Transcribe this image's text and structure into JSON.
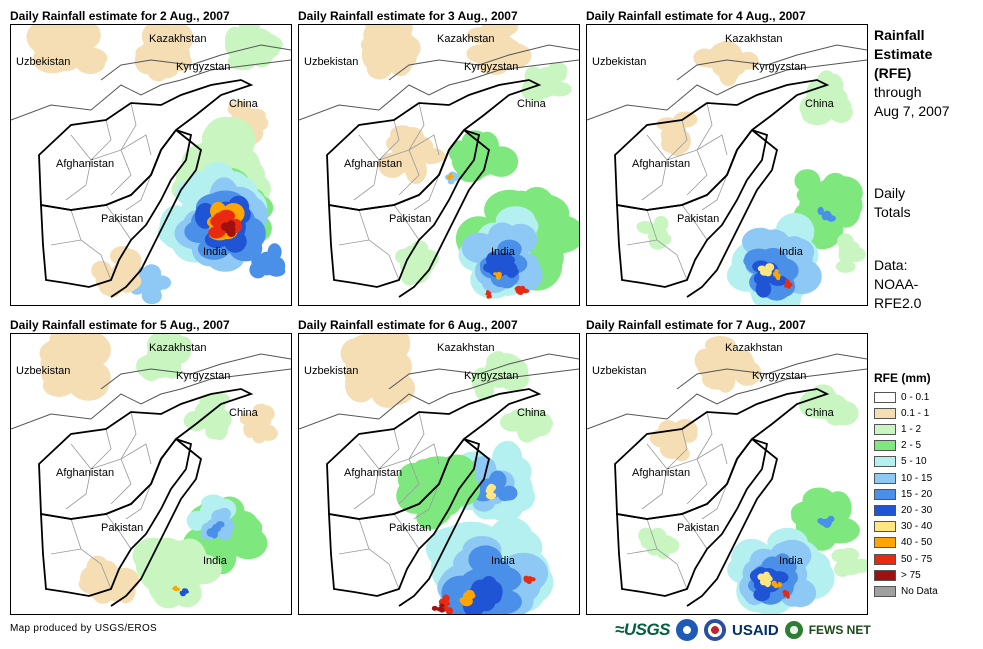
{
  "panels": [
    {
      "title": "Daily Rainfall estimate for 2 Aug., 2007",
      "intensity": "heavy-india"
    },
    {
      "title": "Daily Rainfall estimate for 3 Aug., 2007",
      "intensity": "moderate"
    },
    {
      "title": "Daily Rainfall estimate for 4 Aug., 2007",
      "intensity": "moderate-south"
    },
    {
      "title": "Daily Rainfall estimate for 5 Aug., 2007",
      "intensity": "light"
    },
    {
      "title": "Daily Rainfall estimate for 6 Aug., 2007",
      "intensity": "heavy-south"
    },
    {
      "title": "Daily Rainfall estimate for 7 Aug., 2007",
      "intensity": "moderate-south"
    }
  ],
  "map_labels": {
    "kazakhstan": "Kazakhstan",
    "uzbekistan": "Uzbekistan",
    "kyrgyzstan": "Kyrgyzstan",
    "china": "China",
    "afghanistan": "Afghanistan",
    "pakistan": "Pakistan",
    "india": "India"
  },
  "side": {
    "title_line1": "Rainfall",
    "title_line2": "Estimate",
    "title_line3": "(RFE)",
    "through_line1": "through",
    "through_line2": "Aug 7, 2007",
    "daily_line1": "Daily",
    "daily_line2": "Totals",
    "data_line1": "Data:",
    "data_line2": "NOAA-",
    "data_line3": "RFE2.0"
  },
  "legend": {
    "title": "RFE (mm)",
    "items": [
      {
        "label": "0 - 0.1",
        "color": "#ffffff"
      },
      {
        "label": "0.1 - 1",
        "color": "#f5deb3"
      },
      {
        "label": "1 - 2",
        "color": "#c8f5c0"
      },
      {
        "label": "2 - 5",
        "color": "#7ee87e"
      },
      {
        "label": "5 - 10",
        "color": "#b4f0f0"
      },
      {
        "label": "10 - 15",
        "color": "#8ec8f5"
      },
      {
        "label": "15 - 20",
        "color": "#4a90e8"
      },
      {
        "label": "20 - 30",
        "color": "#1f55d4"
      },
      {
        "label": "30 - 40",
        "color": "#ffe680"
      },
      {
        "label": "40 - 50",
        "color": "#ffa500"
      },
      {
        "label": "50 - 75",
        "color": "#e82a10"
      },
      {
        "label": "> 75",
        "color": "#a01010"
      },
      {
        "label": "No Data",
        "color": "#a0a0a0"
      }
    ]
  },
  "footer": {
    "credit": "Map produced by USGS/EROS",
    "usgs": "≈USGS",
    "usaid": "USAID",
    "fews": "FEWS NET"
  }
}
